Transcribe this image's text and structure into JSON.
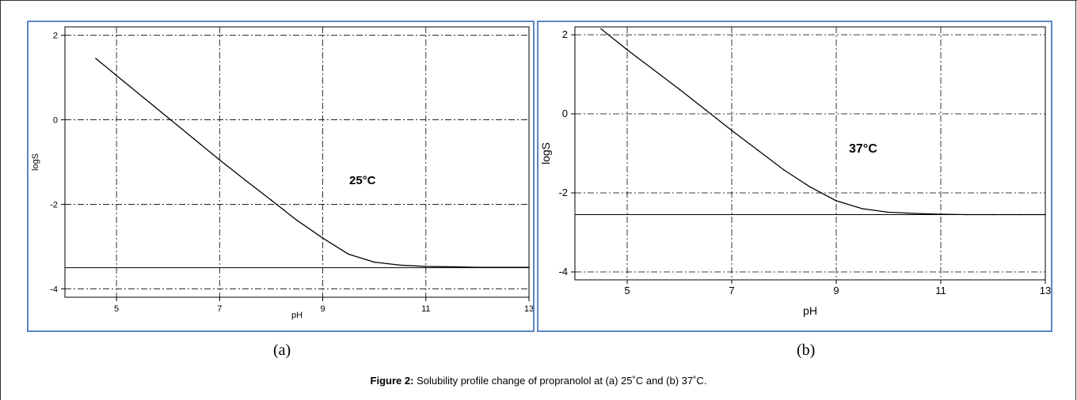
{
  "figure": {
    "label_a": "(a)",
    "label_b": "(b)",
    "caption_bold": "Figure 2:",
    "caption_text": " Solubility profile change of propranolol at (a) 25˚C and (b) 37˚C."
  },
  "chart_data": [
    {
      "type": "line",
      "panel": "a",
      "title": "",
      "annotation": "25°C",
      "xlabel": "pH",
      "ylabel": "logS",
      "xlim": [
        4,
        13
      ],
      "ylim": [
        -4.2,
        2.2
      ],
      "xticks": [
        5,
        7,
        9,
        11,
        13
      ],
      "yticks": [
        -4,
        -2,
        0,
        2
      ],
      "grid": true,
      "series": [
        {
          "values": [
            [
              4.6,
              1.45
            ],
            [
              5.0,
              1.05
            ],
            [
              5.5,
              0.55
            ],
            [
              6.0,
              0.05
            ],
            [
              6.5,
              -0.45
            ],
            [
              7.0,
              -0.95
            ],
            [
              7.5,
              -1.43
            ],
            [
              8.0,
              -1.9
            ],
            [
              8.5,
              -2.38
            ],
            [
              9.0,
              -2.8
            ],
            [
              9.5,
              -3.18
            ],
            [
              10.0,
              -3.37
            ],
            [
              10.5,
              -3.44
            ],
            [
              11.0,
              -3.47
            ],
            [
              11.5,
              -3.48
            ],
            [
              12.0,
              -3.49
            ],
            [
              12.5,
              -3.49
            ],
            [
              13.0,
              -3.49
            ]
          ]
        }
      ],
      "hline": -3.5
    },
    {
      "type": "line",
      "panel": "b",
      "title": "",
      "annotation": "37°C",
      "xlabel": "pH",
      "ylabel": "logS",
      "xlim": [
        4,
        13
      ],
      "ylim": [
        -4.2,
        2.2
      ],
      "xticks": [
        5,
        7,
        9,
        11,
        13
      ],
      "yticks": [
        -4,
        -2,
        0,
        2
      ],
      "grid": true,
      "series": [
        {
          "values": [
            [
              4.5,
              2.15
            ],
            [
              5.0,
              1.62
            ],
            [
              5.5,
              1.12
            ],
            [
              6.0,
              0.62
            ],
            [
              6.5,
              0.1
            ],
            [
              7.0,
              -0.42
            ],
            [
              7.5,
              -0.92
            ],
            [
              8.0,
              -1.42
            ],
            [
              8.5,
              -1.85
            ],
            [
              9.0,
              -2.2
            ],
            [
              9.5,
              -2.4
            ],
            [
              10.0,
              -2.49
            ],
            [
              10.5,
              -2.52
            ],
            [
              11.0,
              -2.54
            ],
            [
              11.5,
              -2.55
            ],
            [
              12.0,
              -2.55
            ],
            [
              12.5,
              -2.55
            ],
            [
              13.0,
              -2.55
            ]
          ]
        }
      ],
      "hline": -2.55
    }
  ]
}
